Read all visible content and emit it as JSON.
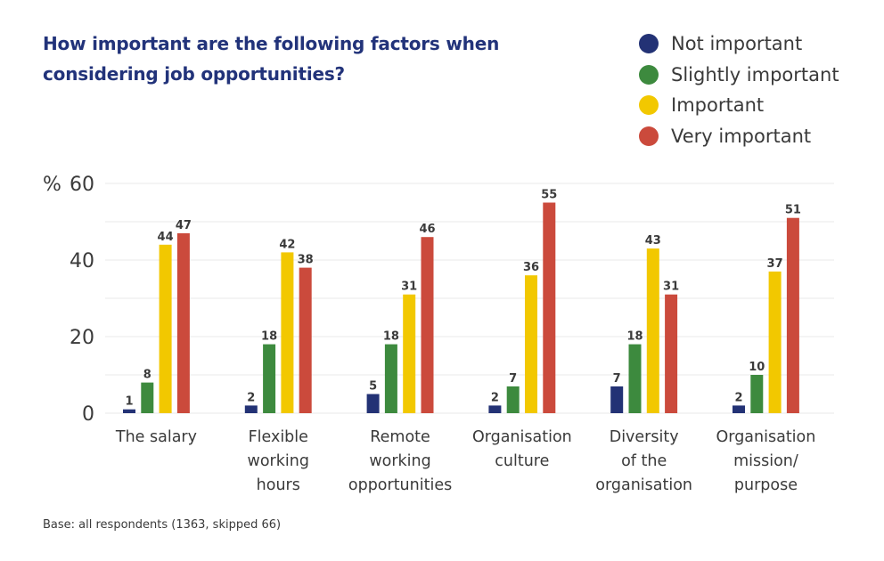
{
  "chart_data": {
    "type": "bar",
    "title": "How important are the following factors when considering job opportunities?",
    "xlabel": "",
    "ylabel": "%",
    "ylim": [
      0,
      60
    ],
    "yticks": [
      0,
      20,
      40,
      60
    ],
    "grid": true,
    "legend_position": "top-right",
    "categories": [
      [
        "The salary"
      ],
      [
        "Flexible",
        "working",
        "hours"
      ],
      [
        "Remote",
        "working",
        "opportunities"
      ],
      [
        "Organisation",
        "culture"
      ],
      [
        "Diversity",
        "of the",
        "organisation"
      ],
      [
        "Organisation",
        "mission/",
        "purpose"
      ]
    ],
    "series": [
      {
        "name": "Not important",
        "color": "#233275",
        "values": [
          1,
          2,
          5,
          2,
          7,
          2
        ]
      },
      {
        "name": "Slightly important",
        "color": "#3d8a3e",
        "values": [
          8,
          18,
          18,
          7,
          18,
          10
        ]
      },
      {
        "name": "Important",
        "color": "#f2c800",
        "values": [
          44,
          42,
          31,
          36,
          43,
          37
        ]
      },
      {
        "name": "Very important",
        "color": "#cb4a3c",
        "values": [
          47,
          38,
          46,
          55,
          31,
          51
        ]
      }
    ]
  },
  "footnote": "Base: all respondents (1363,  skipped 66)"
}
